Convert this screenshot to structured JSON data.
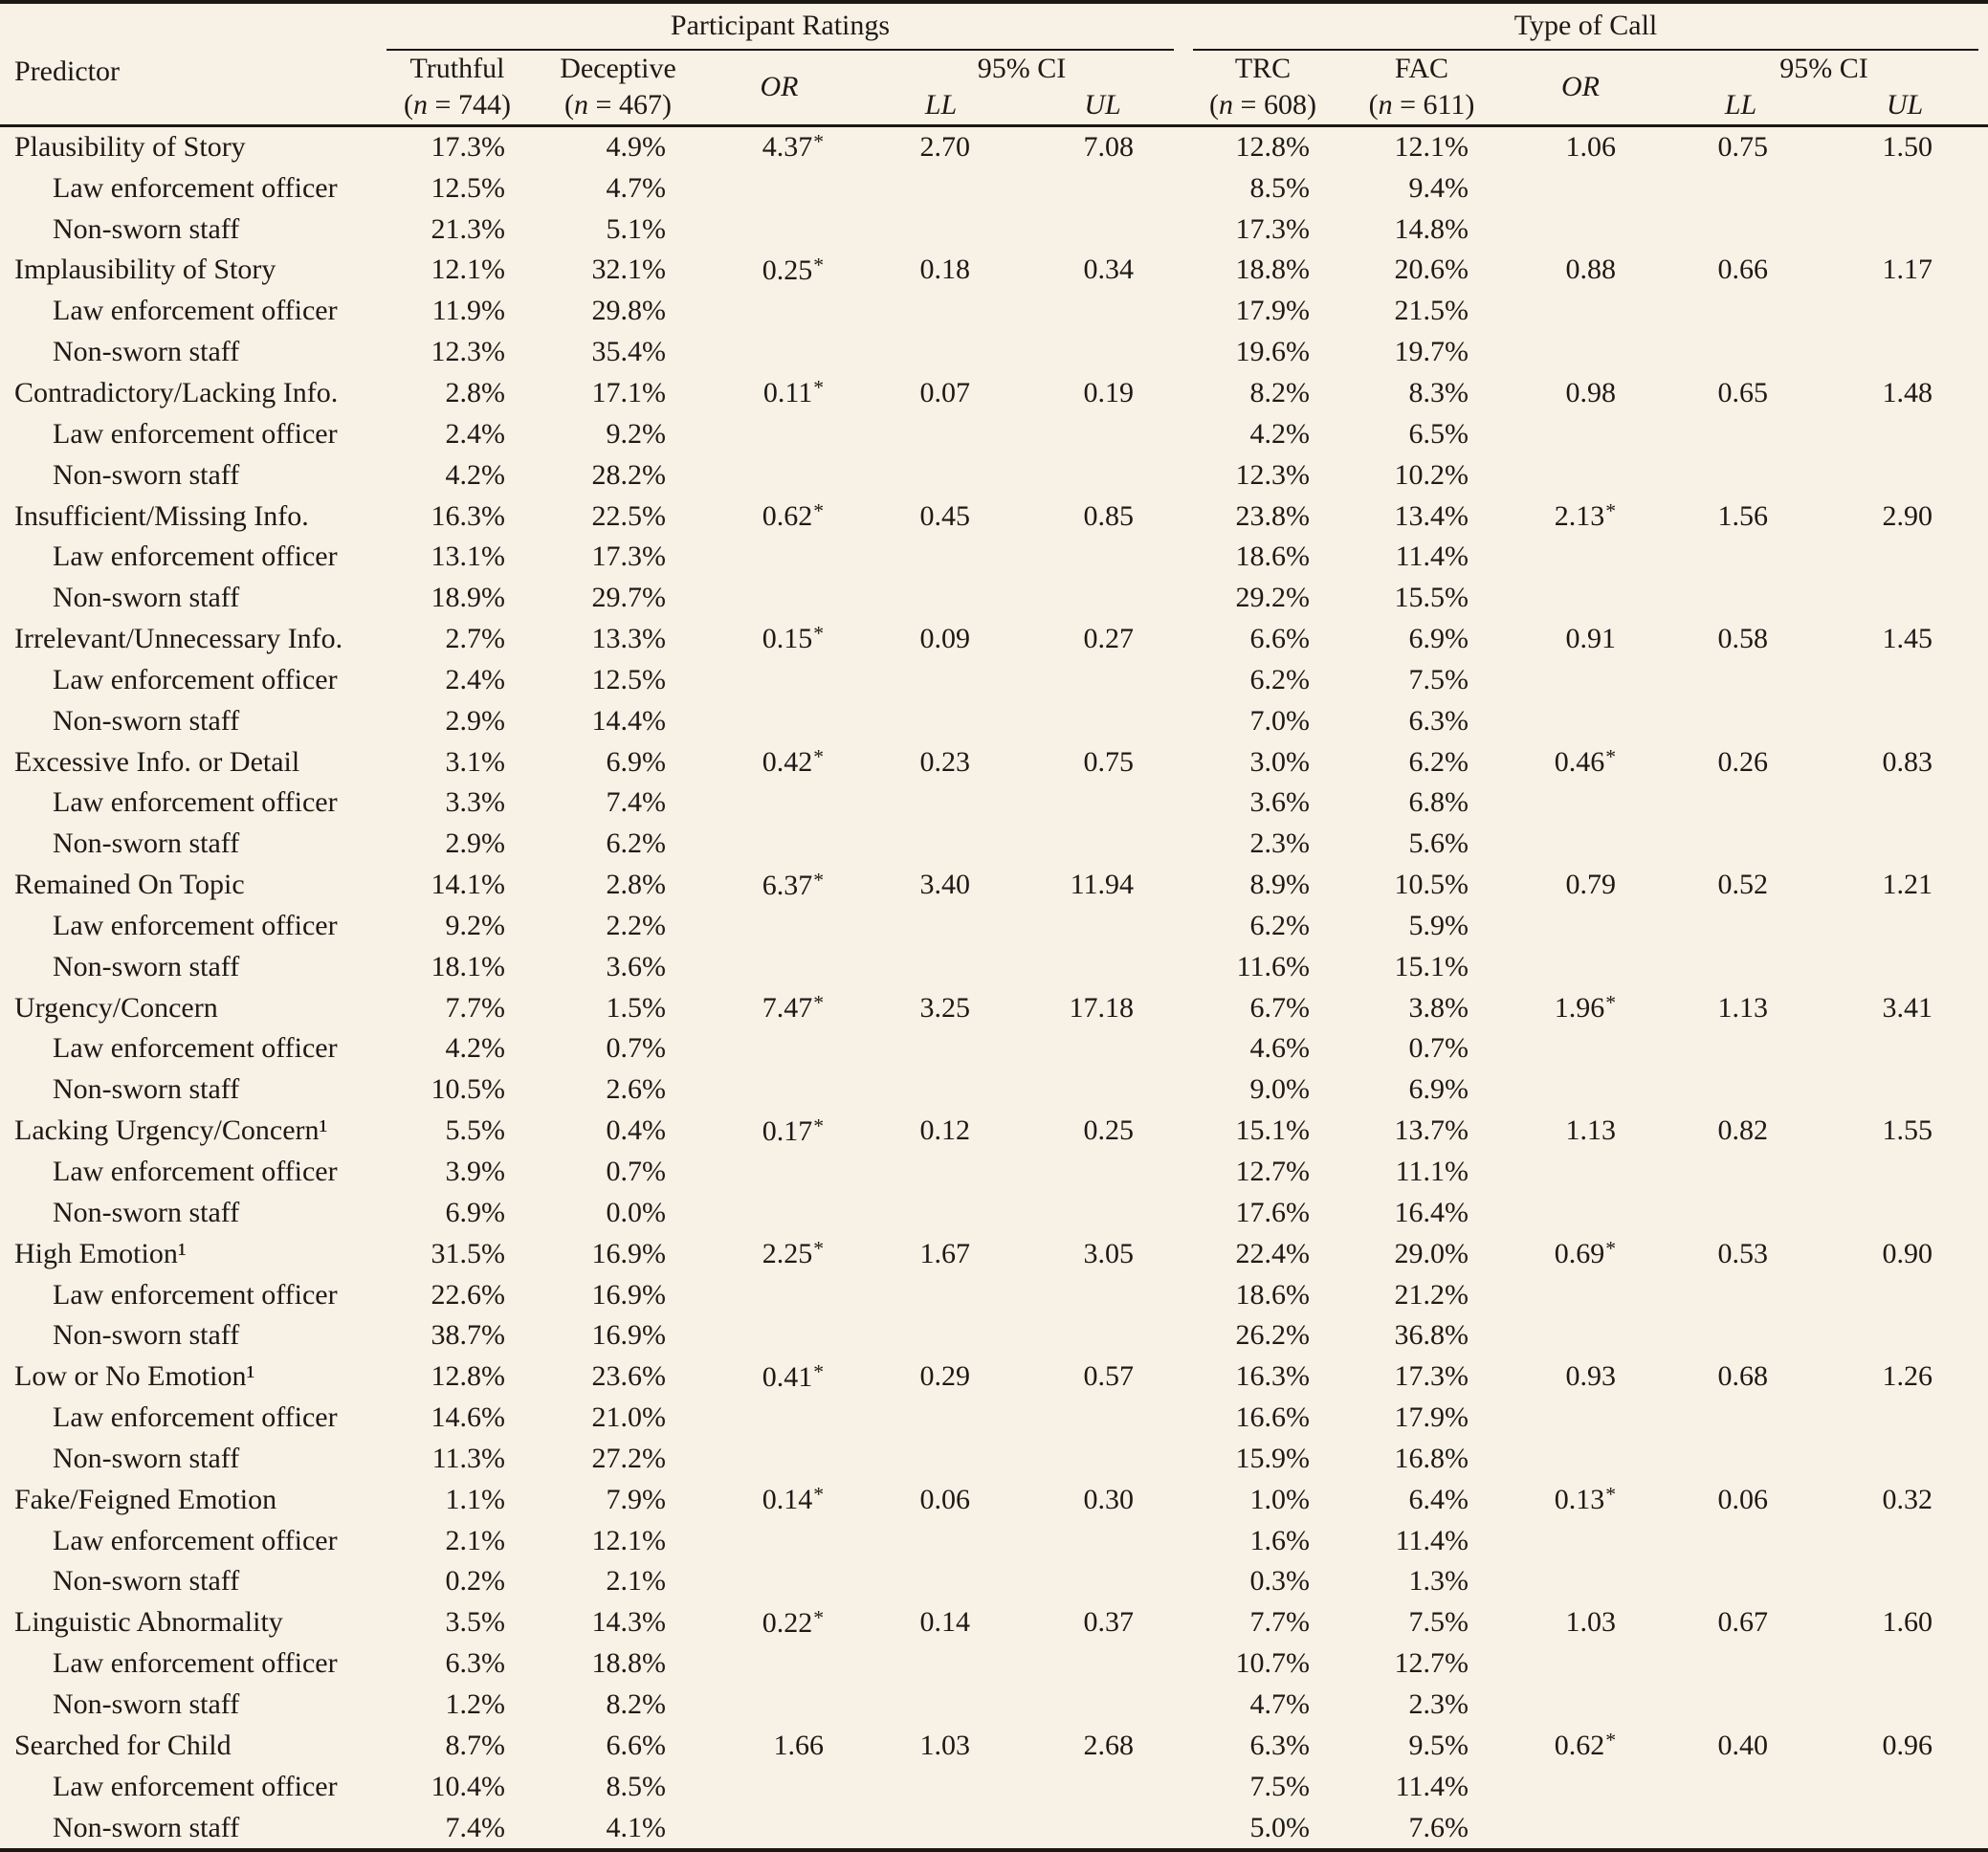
{
  "colors": {
    "background": "#f7f1e6",
    "text": "#1d1a16",
    "rule": "#1b1713"
  },
  "table": {
    "header": {
      "predictor": "Predictor",
      "groups": [
        {
          "label": "Participant Ratings"
        },
        {
          "label": "Type of Call"
        }
      ],
      "cols": {
        "truthful": {
          "line1": "Truthful",
          "line2": "(n = 744)"
        },
        "deceptive": {
          "line1": "Deceptive",
          "line2": "(n = 467)"
        },
        "or1": "OR",
        "ci1": "95% CI",
        "ll1": "LL",
        "ul1": "UL",
        "trc": {
          "line1": "TRC",
          "line2": "(n = 608)"
        },
        "fac": {
          "line1": "FAC",
          "line2": "(n = 611)"
        },
        "or2": "OR",
        "ci2": "95% CI",
        "ll2": "LL",
        "ul2": "UL"
      }
    },
    "rows": [
      {
        "label": "Plausibility of Story",
        "indent": false,
        "cells": [
          "17.3%",
          "4.9%",
          "4.37*",
          "2.70",
          "7.08",
          "12.8%",
          "12.1%",
          "1.06",
          "0.75",
          "1.50"
        ]
      },
      {
        "label": "Law enforcement officer",
        "indent": true,
        "cells": [
          "12.5%",
          "4.7%",
          "",
          "",
          "",
          "8.5%",
          "9.4%",
          "",
          "",
          ""
        ]
      },
      {
        "label": "Non-sworn staff",
        "indent": true,
        "cells": [
          "21.3%",
          "5.1%",
          "",
          "",
          "",
          "17.3%",
          "14.8%",
          "",
          "",
          ""
        ]
      },
      {
        "label": "Implausibility of Story",
        "indent": false,
        "cells": [
          "12.1%",
          "32.1%",
          "0.25*",
          "0.18",
          "0.34",
          "18.8%",
          "20.6%",
          "0.88",
          "0.66",
          "1.17"
        ]
      },
      {
        "label": "Law enforcement officer",
        "indent": true,
        "cells": [
          "11.9%",
          "29.8%",
          "",
          "",
          "",
          "17.9%",
          "21.5%",
          "",
          "",
          ""
        ]
      },
      {
        "label": "Non-sworn staff",
        "indent": true,
        "cells": [
          "12.3%",
          "35.4%",
          "",
          "",
          "",
          "19.6%",
          "19.7%",
          "",
          "",
          ""
        ]
      },
      {
        "label": "Contradictory/Lacking Info.",
        "indent": false,
        "cells": [
          "2.8%",
          "17.1%",
          "0.11*",
          "0.07",
          "0.19",
          "8.2%",
          "8.3%",
          "0.98",
          "0.65",
          "1.48"
        ]
      },
      {
        "label": "Law enforcement officer",
        "indent": true,
        "cells": [
          "2.4%",
          "9.2%",
          "",
          "",
          "",
          "4.2%",
          "6.5%",
          "",
          "",
          ""
        ]
      },
      {
        "label": "Non-sworn staff",
        "indent": true,
        "cells": [
          "4.2%",
          "28.2%",
          "",
          "",
          "",
          "12.3%",
          "10.2%",
          "",
          "",
          ""
        ]
      },
      {
        "label": "Insufficient/Missing Info.",
        "indent": false,
        "cells": [
          "16.3%",
          "22.5%",
          "0.62*",
          "0.45",
          "0.85",
          "23.8%",
          "13.4%",
          "2.13*",
          "1.56",
          "2.90"
        ]
      },
      {
        "label": "Law enforcement officer",
        "indent": true,
        "cells": [
          "13.1%",
          "17.3%",
          "",
          "",
          "",
          "18.6%",
          "11.4%",
          "",
          "",
          ""
        ]
      },
      {
        "label": "Non-sworn staff",
        "indent": true,
        "cells": [
          "18.9%",
          "29.7%",
          "",
          "",
          "",
          "29.2%",
          "15.5%",
          "",
          "",
          ""
        ]
      },
      {
        "label": "Irrelevant/Unnecessary Info.",
        "indent": false,
        "cells": [
          "2.7%",
          "13.3%",
          "0.15*",
          "0.09",
          "0.27",
          "6.6%",
          "6.9%",
          "0.91",
          "0.58",
          "1.45"
        ]
      },
      {
        "label": "Law enforcement officer",
        "indent": true,
        "cells": [
          "2.4%",
          "12.5%",
          "",
          "",
          "",
          "6.2%",
          "7.5%",
          "",
          "",
          ""
        ]
      },
      {
        "label": "Non-sworn staff",
        "indent": true,
        "cells": [
          "2.9%",
          "14.4%",
          "",
          "",
          "",
          "7.0%",
          "6.3%",
          "",
          "",
          ""
        ]
      },
      {
        "label": "Excessive Info. or Detail",
        "indent": false,
        "cells": [
          "3.1%",
          "6.9%",
          "0.42*",
          "0.23",
          "0.75",
          "3.0%",
          "6.2%",
          "0.46*",
          "0.26",
          "0.83"
        ]
      },
      {
        "label": "Law enforcement officer",
        "indent": true,
        "cells": [
          "3.3%",
          "7.4%",
          "",
          "",
          "",
          "3.6%",
          "6.8%",
          "",
          "",
          ""
        ]
      },
      {
        "label": "Non-sworn staff",
        "indent": true,
        "cells": [
          "2.9%",
          "6.2%",
          "",
          "",
          "",
          "2.3%",
          "5.6%",
          "",
          "",
          ""
        ]
      },
      {
        "label": "Remained On Topic",
        "indent": false,
        "cells": [
          "14.1%",
          "2.8%",
          "6.37*",
          "3.40",
          "11.94",
          "8.9%",
          "10.5%",
          "0.79",
          "0.52",
          "1.21"
        ]
      },
      {
        "label": "Law enforcement officer",
        "indent": true,
        "cells": [
          "9.2%",
          "2.2%",
          "",
          "",
          "",
          "6.2%",
          "5.9%",
          "",
          "",
          ""
        ]
      },
      {
        "label": "Non-sworn staff",
        "indent": true,
        "cells": [
          "18.1%",
          "3.6%",
          "",
          "",
          "",
          "11.6%",
          "15.1%",
          "",
          "",
          ""
        ]
      },
      {
        "label": "Urgency/Concern",
        "indent": false,
        "cells": [
          "7.7%",
          "1.5%",
          "7.47*",
          "3.25",
          "17.18",
          "6.7%",
          "3.8%",
          "1.96*",
          "1.13",
          "3.41"
        ]
      },
      {
        "label": "Law enforcement officer",
        "indent": true,
        "cells": [
          "4.2%",
          "0.7%",
          "",
          "",
          "",
          "4.6%",
          "0.7%",
          "",
          "",
          ""
        ]
      },
      {
        "label": "Non-sworn staff",
        "indent": true,
        "cells": [
          "10.5%",
          "2.6%",
          "",
          "",
          "",
          "9.0%",
          "6.9%",
          "",
          "",
          ""
        ]
      },
      {
        "label": "Lacking Urgency/Concern¹",
        "indent": false,
        "cells": [
          "5.5%",
          "0.4%",
          "0.17*",
          "0.12",
          "0.25",
          "15.1%",
          "13.7%",
          "1.13",
          "0.82",
          "1.55"
        ]
      },
      {
        "label": "Law enforcement officer",
        "indent": true,
        "cells": [
          "3.9%",
          "0.7%",
          "",
          "",
          "",
          "12.7%",
          "11.1%",
          "",
          "",
          ""
        ]
      },
      {
        "label": "Non-sworn staff",
        "indent": true,
        "cells": [
          "6.9%",
          "0.0%",
          "",
          "",
          "",
          "17.6%",
          "16.4%",
          "",
          "",
          ""
        ]
      },
      {
        "label": "High Emotion¹",
        "indent": false,
        "cells": [
          "31.5%",
          "16.9%",
          "2.25*",
          "1.67",
          "3.05",
          "22.4%",
          "29.0%",
          "0.69*",
          "0.53",
          "0.90"
        ]
      },
      {
        "label": "Law enforcement officer",
        "indent": true,
        "cells": [
          "22.6%",
          "16.9%",
          "",
          "",
          "",
          "18.6%",
          "21.2%",
          "",
          "",
          ""
        ]
      },
      {
        "label": "Non-sworn staff",
        "indent": true,
        "cells": [
          "38.7%",
          "16.9%",
          "",
          "",
          "",
          "26.2%",
          "36.8%",
          "",
          "",
          ""
        ]
      },
      {
        "label": "Low or No Emotion¹",
        "indent": false,
        "cells": [
          "12.8%",
          "23.6%",
          "0.41*",
          "0.29",
          "0.57",
          "16.3%",
          "17.3%",
          "0.93",
          "0.68",
          "1.26"
        ]
      },
      {
        "label": "Law enforcement officer",
        "indent": true,
        "cells": [
          "14.6%",
          "21.0%",
          "",
          "",
          "",
          "16.6%",
          "17.9%",
          "",
          "",
          ""
        ]
      },
      {
        "label": "Non-sworn staff",
        "indent": true,
        "cells": [
          "11.3%",
          "27.2%",
          "",
          "",
          "",
          "15.9%",
          "16.8%",
          "",
          "",
          ""
        ]
      },
      {
        "label": "Fake/Feigned Emotion",
        "indent": false,
        "cells": [
          "1.1%",
          "7.9%",
          "0.14*",
          "0.06",
          "0.30",
          "1.0%",
          "6.4%",
          "0.13*",
          "0.06",
          "0.32"
        ]
      },
      {
        "label": "Law enforcement officer",
        "indent": true,
        "cells": [
          "2.1%",
          "12.1%",
          "",
          "",
          "",
          "1.6%",
          "11.4%",
          "",
          "",
          ""
        ]
      },
      {
        "label": "Non-sworn staff",
        "indent": true,
        "cells": [
          "0.2%",
          "2.1%",
          "",
          "",
          "",
          "0.3%",
          "1.3%",
          "",
          "",
          ""
        ]
      },
      {
        "label": "Linguistic Abnormality",
        "indent": false,
        "cells": [
          "3.5%",
          "14.3%",
          "0.22*",
          "0.14",
          "0.37",
          "7.7%",
          "7.5%",
          "1.03",
          "0.67",
          "1.60"
        ]
      },
      {
        "label": "Law enforcement officer",
        "indent": true,
        "cells": [
          "6.3%",
          "18.8%",
          "",
          "",
          "",
          "10.7%",
          "12.7%",
          "",
          "",
          ""
        ]
      },
      {
        "label": "Non-sworn staff",
        "indent": true,
        "cells": [
          "1.2%",
          "8.2%",
          "",
          "",
          "",
          "4.7%",
          "2.3%",
          "",
          "",
          ""
        ]
      },
      {
        "label": "Searched for Child",
        "indent": false,
        "cells": [
          "8.7%",
          "6.6%",
          "1.66",
          "1.03",
          "2.68",
          "6.3%",
          "9.5%",
          "0.62*",
          "0.40",
          "0.96"
        ]
      },
      {
        "label": "Law enforcement officer",
        "indent": true,
        "cells": [
          "10.4%",
          "8.5%",
          "",
          "",
          "",
          "7.5%",
          "11.4%",
          "",
          "",
          ""
        ]
      },
      {
        "label": "Non-sworn staff",
        "indent": true,
        "cells": [
          "7.4%",
          "4.1%",
          "",
          "",
          "",
          "5.0%",
          "7.6%",
          "",
          "",
          ""
        ]
      }
    ]
  }
}
